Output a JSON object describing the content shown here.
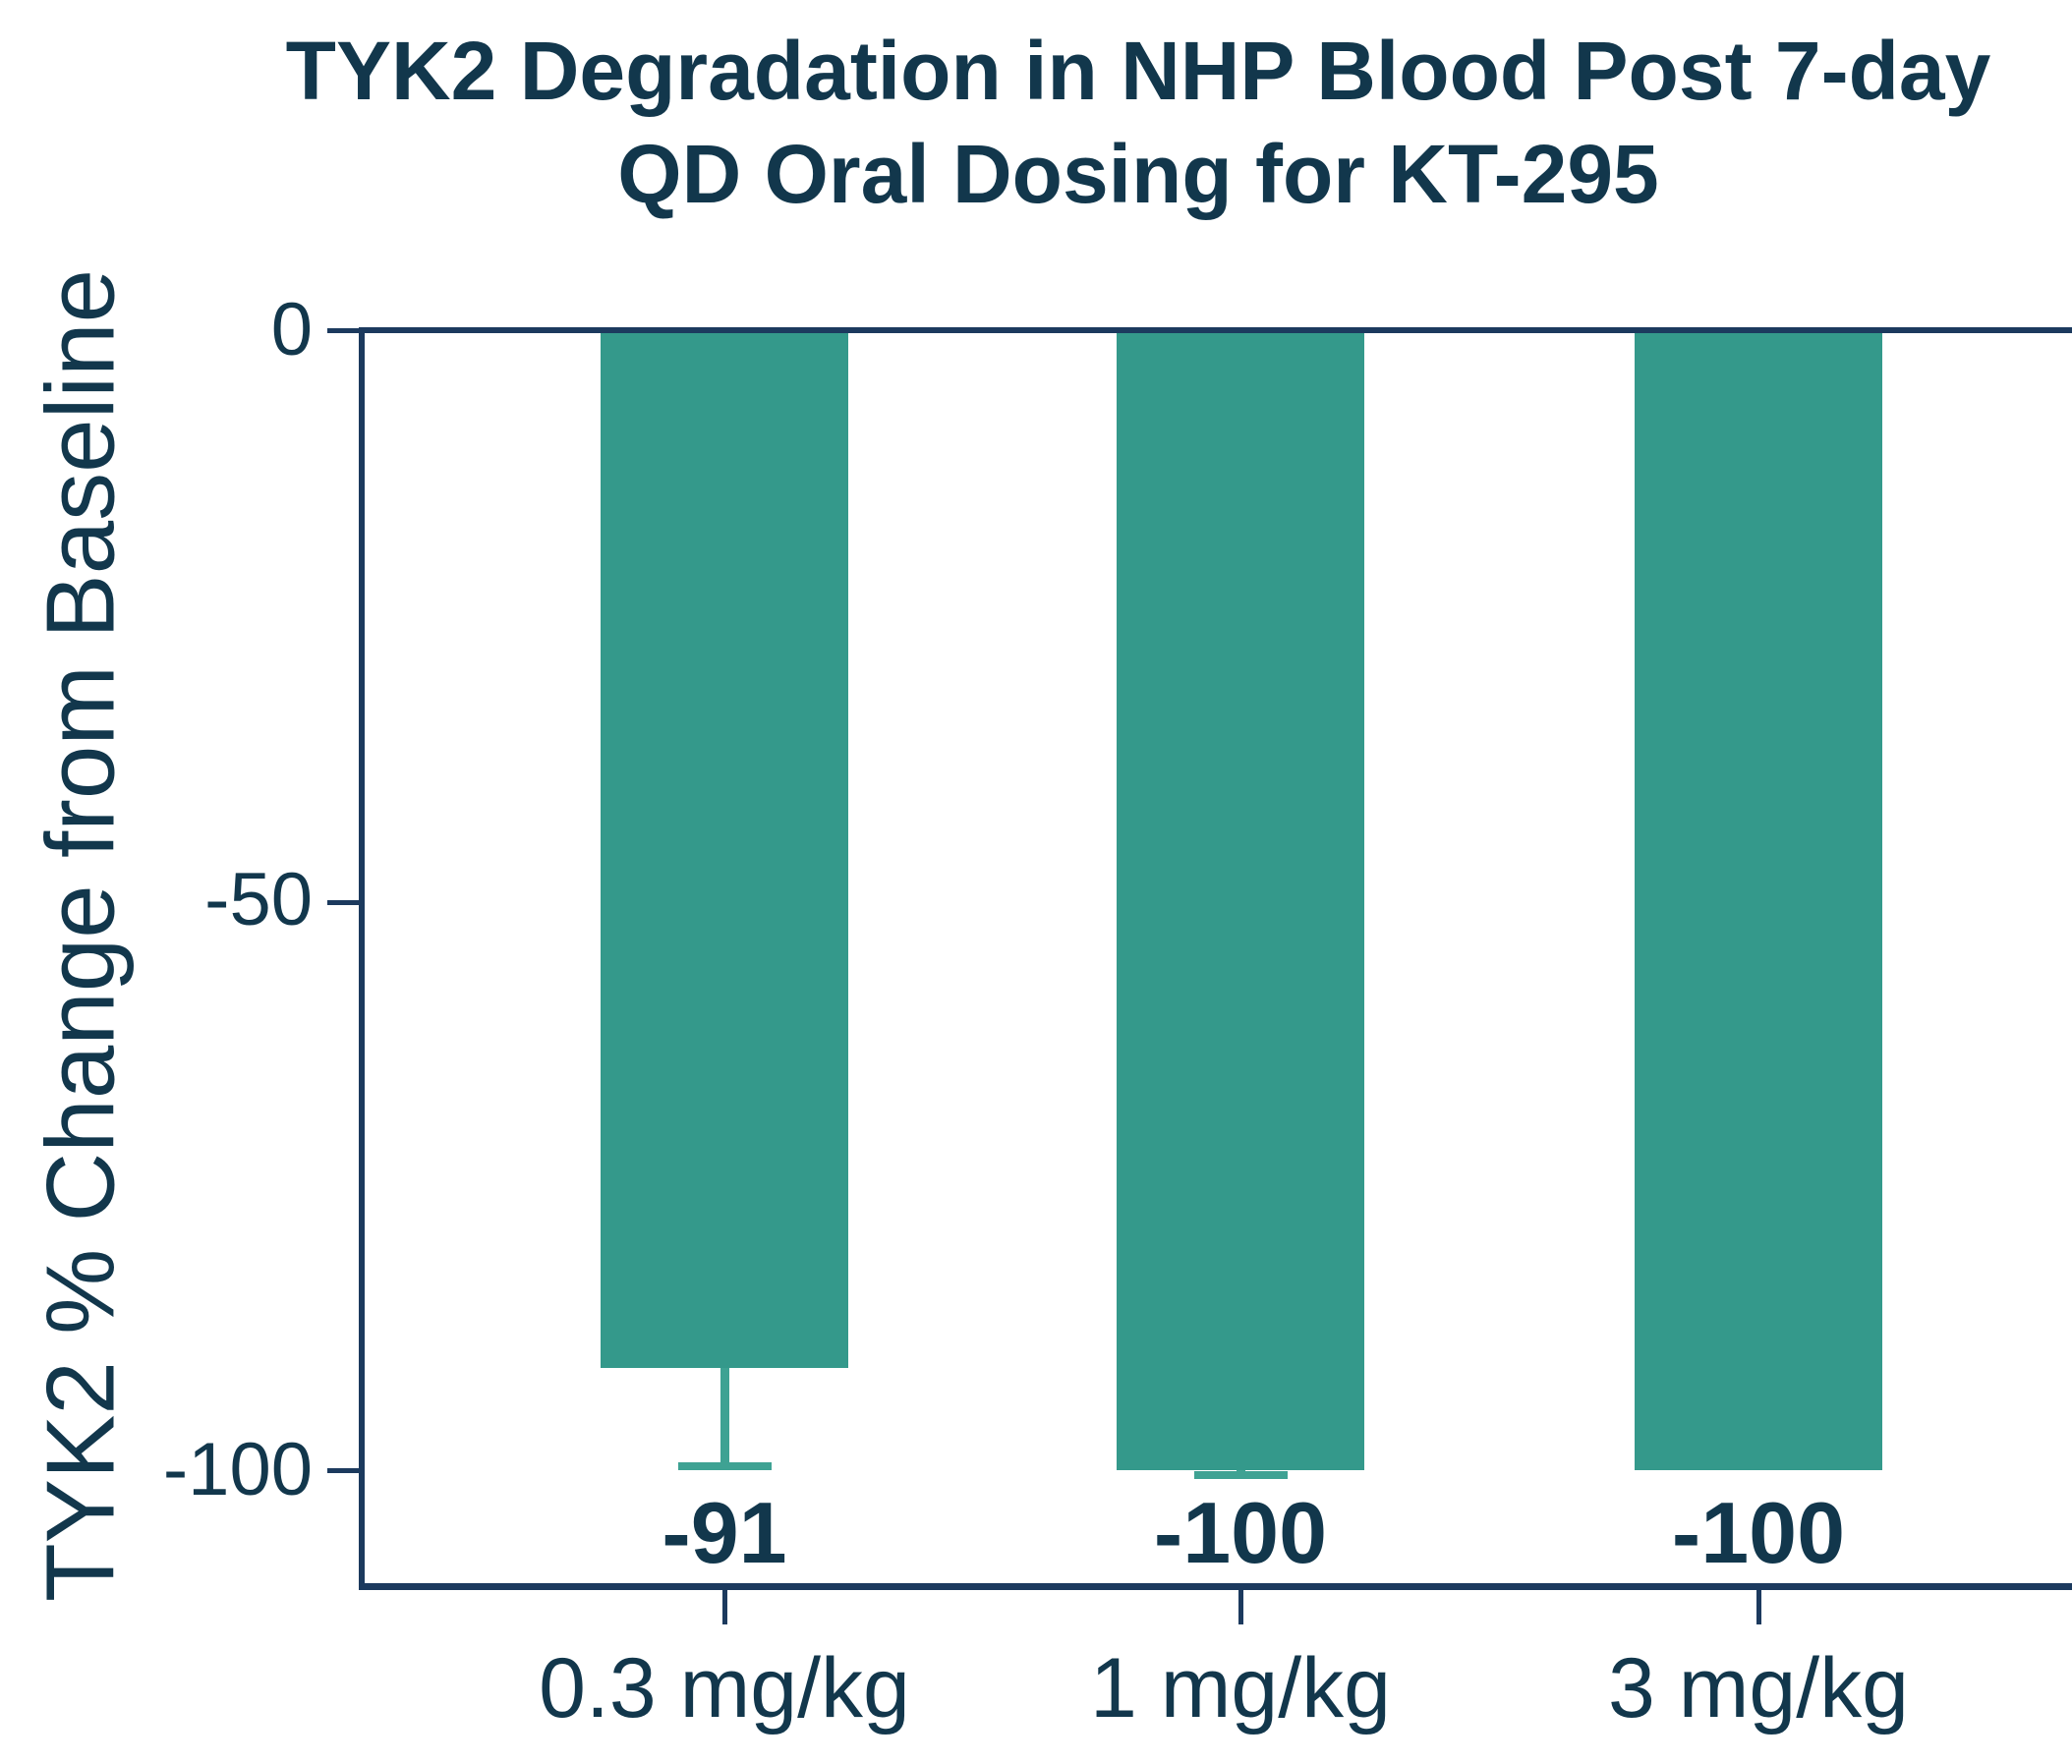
{
  "chart_data": {
    "type": "bar",
    "title": "TYK2 Degradation in NHP Blood Post 7-day QD Oral Dosing for KT-295",
    "title_lines": [
      "TYK2 Degradation in NHP Blood Post 7-day",
      "QD Oral Dosing for KT-295"
    ],
    "ylabel": "TYK2 % Change from Baseline",
    "xlabel": "",
    "categories": [
      "0.3 mg/kg",
      "1 mg/kg",
      "3 mg/kg"
    ],
    "values": [
      -91,
      -100,
      -100
    ],
    "bar_labels": [
      "-91",
      "-100",
      "-100"
    ],
    "error_down": [
      9,
      0.8,
      0
    ],
    "yticks": [
      "0",
      "-50",
      "-100"
    ],
    "ylim": [
      -111,
      0
    ],
    "grid": false,
    "legend_position": "none",
    "colors": {
      "bar": "#34998B",
      "error_bar": "#3EA293",
      "text": "#12374C",
      "axis": "#1C3A5E",
      "background": "#FFFFFF"
    }
  }
}
